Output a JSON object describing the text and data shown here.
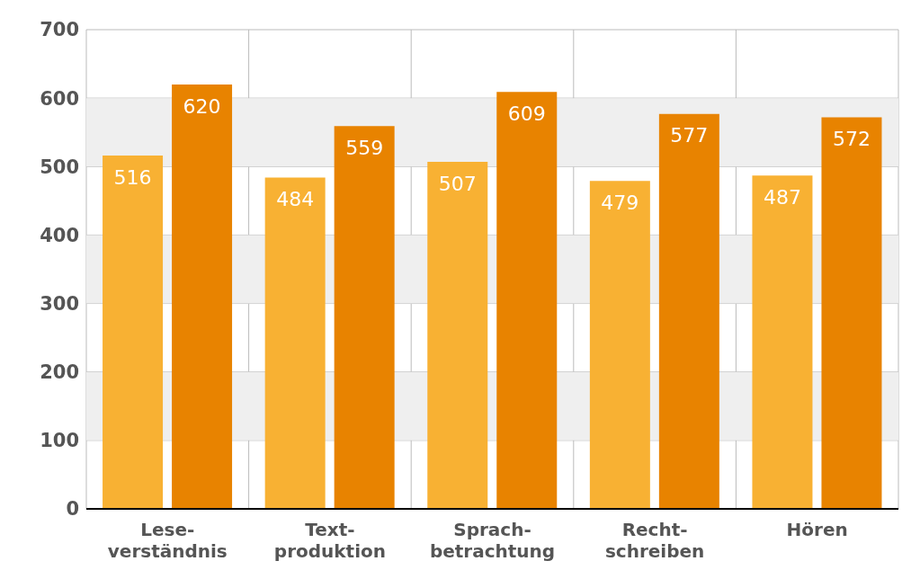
{
  "chart_data": {
    "type": "bar",
    "categories": [
      "Lese-\nverständnis",
      "Text-\nproduktion",
      "Sprach-\nbetrachtung",
      "Recht-\nschreiben",
      "Hören"
    ],
    "series": [
      {
        "color": "#f8b133",
        "values": [
          516,
          484,
          507,
          479,
          487
        ]
      },
      {
        "color": "#e88300",
        "values": [
          620,
          559,
          609,
          577,
          572
        ]
      }
    ],
    "ylim": [
      0,
      700
    ],
    "yticks": [
      0,
      100,
      200,
      300,
      400,
      500,
      600,
      700
    ],
    "bands": [
      {
        "axis": "y",
        "from": 100,
        "to": 200,
        "color": "#efefef"
      },
      {
        "axis": "y",
        "from": 300,
        "to": 400,
        "color": "#efefef"
      },
      {
        "axis": "y",
        "from": 500,
        "to": 600,
        "color": "#efefef"
      }
    ],
    "grid": true,
    "data_labels": true,
    "legend": false
  }
}
